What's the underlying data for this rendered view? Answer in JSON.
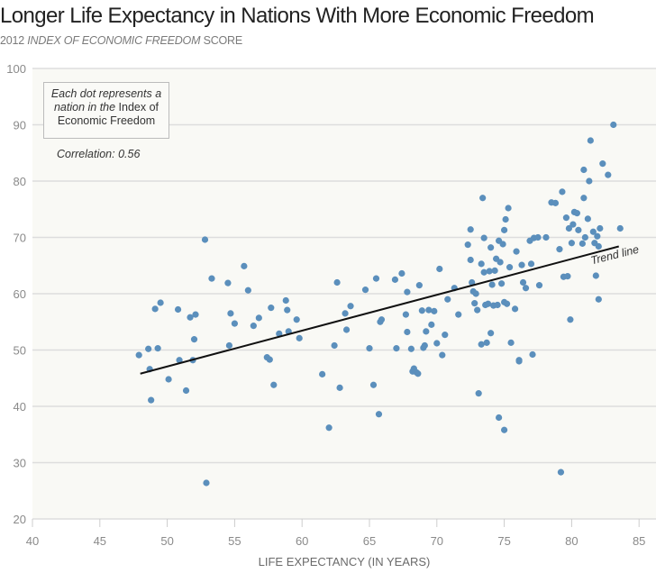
{
  "header": {
    "title": "Longer Life Expectancy in Nations With More Economic Freedom",
    "subtitle_prefix": "2012 ",
    "subtitle_italic": "INDEX OF ECONOMIC FREEDOM",
    "subtitle_suffix": " SCORE"
  },
  "annotation": {
    "note_italic_1": "Each dot represents a nation in the",
    "note_plain": " Index of Economic Freedom",
    "correlation": "Correlation: 0.56",
    "trend_label": "Trend line"
  },
  "colors": {
    "dot": "#5b8fbc",
    "plot_bg": "#f9f9f5",
    "grid": "#dddddd",
    "trend": "#111111"
  },
  "chart_data": {
    "type": "scatter",
    "title": "Longer Life Expectancy in Nations With More Economic Freedom",
    "ylabel": "2012 INDEX OF ECONOMIC FREEDOM SCORE",
    "xlabel": "LIFE EXPECTANCY (IN YEARS)",
    "xlim": [
      40,
      87
    ],
    "ylim": [
      20,
      100
    ],
    "xticks": [
      40,
      45,
      50,
      55,
      60,
      65,
      70,
      75,
      80,
      85
    ],
    "yticks": [
      20,
      30,
      40,
      50,
      60,
      70,
      80,
      90,
      100
    ],
    "grid": "horizontal",
    "correlation": 0.56,
    "trend_line": {
      "x": [
        48,
        83.5
      ],
      "y": [
        45.8,
        68.4
      ]
    },
    "points": [
      [
        47.9,
        49.1
      ],
      [
        48.6,
        50.2
      ],
      [
        48.7,
        46.6
      ],
      [
        48.8,
        41.1
      ],
      [
        49.1,
        57.3
      ],
      [
        49.3,
        50.3
      ],
      [
        49.5,
        58.4
      ],
      [
        50.1,
        44.8
      ],
      [
        50.8,
        57.2
      ],
      [
        50.9,
        48.2
      ],
      [
        51.4,
        42.8
      ],
      [
        51.7,
        55.8
      ],
      [
        51.9,
        48.2
      ],
      [
        52.0,
        51.9
      ],
      [
        52.1,
        56.3
      ],
      [
        52.9,
        26.4
      ],
      [
        52.8,
        69.6
      ],
      [
        53.3,
        62.7
      ],
      [
        54.5,
        61.9
      ],
      [
        54.6,
        50.8
      ],
      [
        54.7,
        56.5
      ],
      [
        55.0,
        54.7
      ],
      [
        55.7,
        64.9
      ],
      [
        56.0,
        60.6
      ],
      [
        56.4,
        54.3
      ],
      [
        56.8,
        55.7
      ],
      [
        57.4,
        48.7
      ],
      [
        57.6,
        48.3
      ],
      [
        57.7,
        57.5
      ],
      [
        57.9,
        43.8
      ],
      [
        58.3,
        52.9
      ],
      [
        58.8,
        58.8
      ],
      [
        58.9,
        57.1
      ],
      [
        59.0,
        53.3
      ],
      [
        59.6,
        55.4
      ],
      [
        59.8,
        52.1
      ],
      [
        61.5,
        45.7
      ],
      [
        62.0,
        36.2
      ],
      [
        62.4,
        50.8
      ],
      [
        62.6,
        62.0
      ],
      [
        62.8,
        43.3
      ],
      [
        63.2,
        56.5
      ],
      [
        63.3,
        53.6
      ],
      [
        63.6,
        57.8
      ],
      [
        64.7,
        60.7
      ],
      [
        65.0,
        50.3
      ],
      [
        65.3,
        43.8
      ],
      [
        65.5,
        62.7
      ],
      [
        65.7,
        38.6
      ],
      [
        65.8,
        55.0
      ],
      [
        65.9,
        55.4
      ],
      [
        66.9,
        62.5
      ],
      [
        67.0,
        50.3
      ],
      [
        67.4,
        63.6
      ],
      [
        67.7,
        56.3
      ],
      [
        67.8,
        53.2
      ],
      [
        67.8,
        60.3
      ],
      [
        68.1,
        50.2
      ],
      [
        68.2,
        46.2
      ],
      [
        68.3,
        46.7
      ],
      [
        68.5,
        46.0
      ],
      [
        68.6,
        45.8
      ],
      [
        68.7,
        61.5
      ],
      [
        68.9,
        57.0
      ],
      [
        69.0,
        50.4
      ],
      [
        69.1,
        50.8
      ],
      [
        69.2,
        53.3
      ],
      [
        69.4,
        57.1
      ],
      [
        69.6,
        54.5
      ],
      [
        69.8,
        56.9
      ],
      [
        70.0,
        51.2
      ],
      [
        70.2,
        64.4
      ],
      [
        70.4,
        49.1
      ],
      [
        70.6,
        52.7
      ],
      [
        70.8,
        59.0
      ],
      [
        71.3,
        61.0
      ],
      [
        71.6,
        56.3
      ],
      [
        72.3,
        68.7
      ],
      [
        72.5,
        71.4
      ],
      [
        72.5,
        66.0
      ],
      [
        72.6,
        62.0
      ],
      [
        72.7,
        60.4
      ],
      [
        72.8,
        58.3
      ],
      [
        72.9,
        60.0
      ],
      [
        73.0,
        57.1
      ],
      [
        73.1,
        42.3
      ],
      [
        73.3,
        51.0
      ],
      [
        73.3,
        65.3
      ],
      [
        73.4,
        77.0
      ],
      [
        73.5,
        69.9
      ],
      [
        73.5,
        63.8
      ],
      [
        73.6,
        58.0
      ],
      [
        73.7,
        51.3
      ],
      [
        73.8,
        58.2
      ],
      [
        73.9,
        64.0
      ],
      [
        74.0,
        53.0
      ],
      [
        74.0,
        68.2
      ],
      [
        74.1,
        61.6
      ],
      [
        74.2,
        57.9
      ],
      [
        74.3,
        64.1
      ],
      [
        74.4,
        66.2
      ],
      [
        74.5,
        58.0
      ],
      [
        74.6,
        69.4
      ],
      [
        74.6,
        38.0
      ],
      [
        74.7,
        65.6
      ],
      [
        74.8,
        61.8
      ],
      [
        74.9,
        68.8
      ],
      [
        75.0,
        58.5
      ],
      [
        75.0,
        71.3
      ],
      [
        75.0,
        35.8
      ],
      [
        75.1,
        73.2
      ],
      [
        75.2,
        58.2
      ],
      [
        75.3,
        75.2
      ],
      [
        75.4,
        64.7
      ],
      [
        75.5,
        51.3
      ],
      [
        75.8,
        57.3
      ],
      [
        75.9,
        67.5
      ],
      [
        76.1,
        48.2
      ],
      [
        76.1,
        48.0
      ],
      [
        76.3,
        65.1
      ],
      [
        76.4,
        62.0
      ],
      [
        76.6,
        61.0
      ],
      [
        76.9,
        69.4
      ],
      [
        77.0,
        65.3
      ],
      [
        77.1,
        49.2
      ],
      [
        77.2,
        69.9
      ],
      [
        77.5,
        70.0
      ],
      [
        77.6,
        61.5
      ],
      [
        78.1,
        70.0
      ],
      [
        78.5,
        76.2
      ],
      [
        78.8,
        76.1
      ],
      [
        79.1,
        67.9
      ],
      [
        79.2,
        28.3
      ],
      [
        79.3,
        78.1
      ],
      [
        79.4,
        63.0
      ],
      [
        79.6,
        73.5
      ],
      [
        79.7,
        63.1
      ],
      [
        79.8,
        71.6
      ],
      [
        79.9,
        55.4
      ],
      [
        80.0,
        69.0
      ],
      [
        80.1,
        72.3
      ],
      [
        80.2,
        74.5
      ],
      [
        80.4,
        74.3
      ],
      [
        80.5,
        71.3
      ],
      [
        80.8,
        68.9
      ],
      [
        80.9,
        77.0
      ],
      [
        80.9,
        82.0
      ],
      [
        81.0,
        70.0
      ],
      [
        81.2,
        73.3
      ],
      [
        81.3,
        80.0
      ],
      [
        81.4,
        87.2
      ],
      [
        81.6,
        71.0
      ],
      [
        81.7,
        69.0
      ],
      [
        81.8,
        63.2
      ],
      [
        81.9,
        70.2
      ],
      [
        82.0,
        68.4
      ],
      [
        82.0,
        59.0
      ],
      [
        82.1,
        71.6
      ],
      [
        82.3,
        83.1
      ],
      [
        82.7,
        81.1
      ],
      [
        83.1,
        90.0
      ],
      [
        83.6,
        71.6
      ]
    ]
  }
}
